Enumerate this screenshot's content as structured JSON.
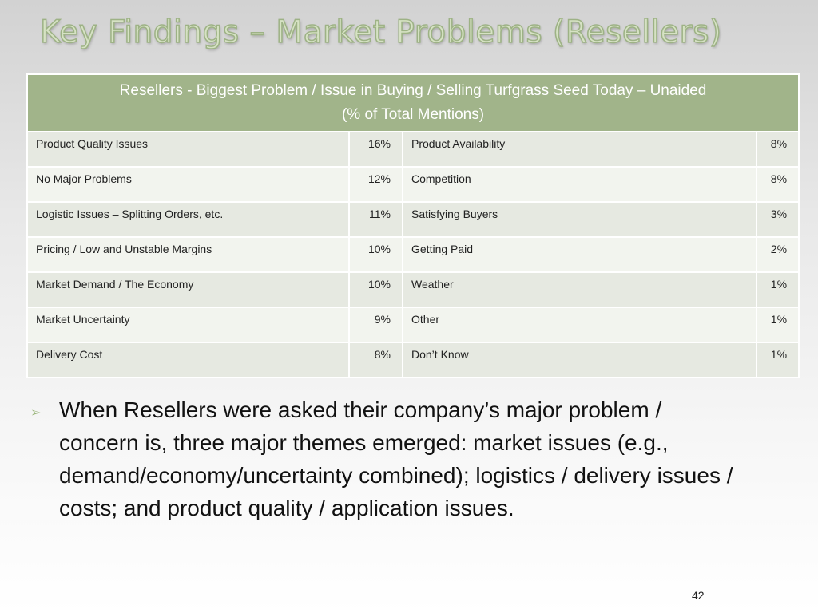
{
  "slide": {
    "title": "Key Findings – Market Problems (Resellers)",
    "page_number": "42"
  },
  "table": {
    "header_line1": "Resellers - Biggest Problem / Issue in Buying / Selling Turfgrass Seed Today – Unaided",
    "header_line2": "(% of Total Mentions)",
    "rows": [
      {
        "left_label": "Product Quality Issues",
        "left_pct": "16%",
        "right_label": "Product Availability",
        "right_pct": "8%"
      },
      {
        "left_label": "No Major Problems",
        "left_pct": "12%",
        "right_label": "Competition",
        "right_pct": "8%"
      },
      {
        "left_label": "Logistic Issues – Splitting Orders, etc.",
        "left_pct": "11%",
        "right_label": "Satisfying Buyers",
        "right_pct": "3%"
      },
      {
        "left_label": "Pricing / Low and Unstable Margins",
        "left_pct": "10%",
        "right_label": "Getting Paid",
        "right_pct": "2%"
      },
      {
        "left_label": "Market Demand / The Economy",
        "left_pct": "10%",
        "right_label": "Weather",
        "right_pct": "1%"
      },
      {
        "left_label": "Market Uncertainty",
        "left_pct": "9%",
        "right_label": "Other",
        "right_pct": "1%"
      },
      {
        "left_label": "Delivery Cost",
        "left_pct": "8%",
        "right_label": "Don’t Know",
        "right_pct": "1%"
      }
    ]
  },
  "bullet": {
    "icon": "arrow-bullet-icon",
    "text": "When Resellers were asked their company’s major problem / concern is, three major themes emerged: market issues (e.g., demand/economy/uncertainty combined); logistics / delivery issues / costs; and product quality / application issues."
  },
  "colors": {
    "title_fill": "#d6e2c4",
    "title_outline": "#9db285",
    "table_header_bg": "#a1b48a",
    "row_a_bg": "#e6e9e1",
    "row_b_bg": "#f2f4ee",
    "bullet_arrow": "#9bb67c"
  }
}
